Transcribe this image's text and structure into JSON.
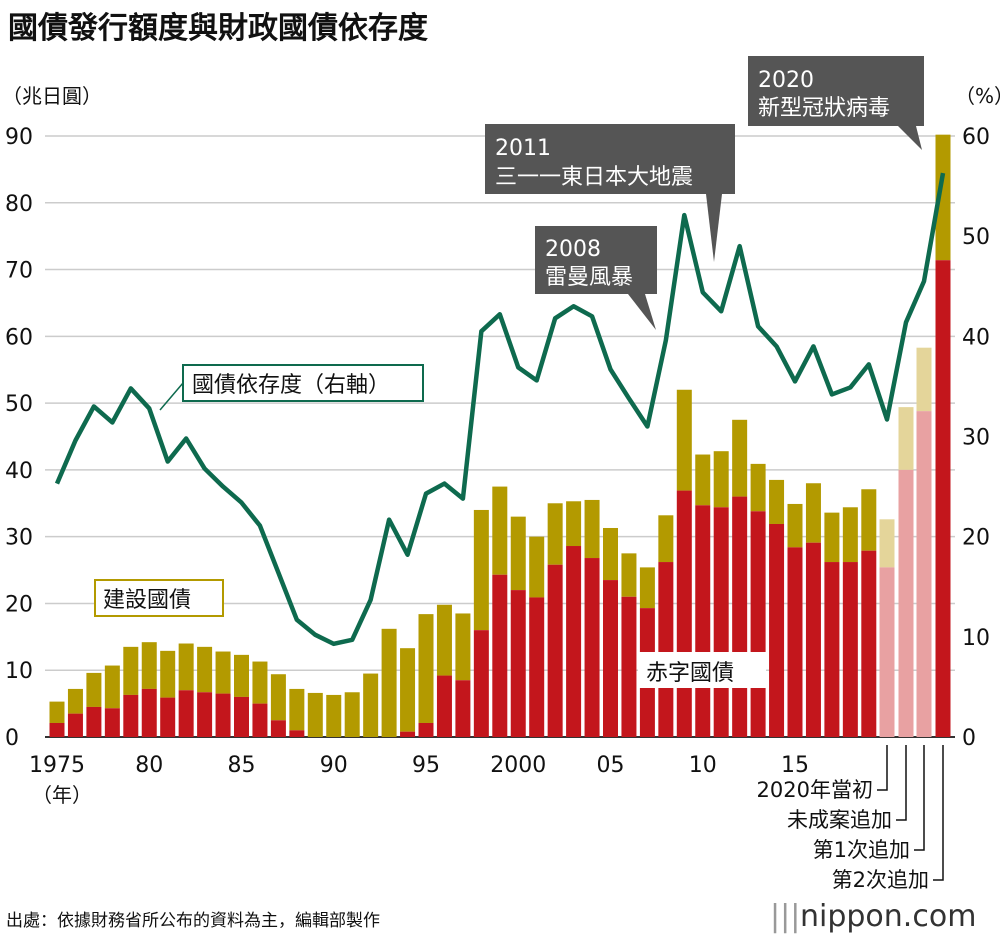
{
  "chart_data": {
    "type": "bar",
    "title": "國債發行額度與財政國債依存度",
    "ylabel": "（兆日圓）",
    "y2label": "（%）",
    "xlabel_unit": "（年）",
    "ylim": [
      0,
      90
    ],
    "y2lim": [
      0,
      60
    ],
    "yticks": [
      "0",
      "10",
      "20",
      "30",
      "40",
      "50",
      "60",
      "70",
      "80",
      "90"
    ],
    "y2ticks": [
      "0",
      "10",
      "20",
      "30",
      "40",
      "50",
      "60"
    ],
    "xtick_labels": [
      {
        "year": 1975,
        "label": "1975"
      },
      {
        "year": 1980,
        "label": "80"
      },
      {
        "year": 1985,
        "label": "85"
      },
      {
        "year": 1990,
        "label": "90"
      },
      {
        "year": 1995,
        "label": "95"
      },
      {
        "year": 2000,
        "label": "2000"
      },
      {
        "year": 2005,
        "label": "05"
      },
      {
        "year": 2010,
        "label": "10"
      },
      {
        "year": 2015,
        "label": "15"
      }
    ],
    "years": [
      1975,
      1976,
      1977,
      1978,
      1979,
      1980,
      1981,
      1982,
      1983,
      1984,
      1985,
      1986,
      1987,
      1988,
      1989,
      1990,
      1991,
      1992,
      1993,
      1994,
      1995,
      1996,
      1997,
      1998,
      1999,
      2000,
      2001,
      2002,
      2003,
      2004,
      2005,
      2006,
      2007,
      2008,
      2009,
      2010,
      2011,
      2012,
      2013,
      2014,
      2015,
      2016,
      2017,
      2018,
      2019
    ],
    "extra_2020": [
      "2020年當初",
      "未成案追加",
      "第1次追加",
      "第2次追加"
    ],
    "series": [
      {
        "name": "赤字國債",
        "color": "#c3161c",
        "values": [
          2.1,
          3.5,
          4.5,
          4.3,
          6.3,
          7.2,
          5.9,
          7.0,
          6.7,
          6.5,
          6.0,
          5.0,
          2.5,
          1.0,
          0,
          0,
          0,
          0,
          0,
          0.8,
          2.1,
          9.2,
          8.5,
          16.0,
          24.3,
          22.0,
          20.9,
          25.8,
          28.6,
          26.8,
          23.5,
          21.0,
          19.3,
          26.2,
          36.9,
          34.7,
          34.4,
          36.0,
          33.8,
          31.9,
          28.4,
          29.1,
          26.2,
          26.2,
          27.9
        ],
        "values_2020": [
          25.4,
          40.0,
          48.8,
          71.4
        ]
      },
      {
        "name": "建設國債",
        "color": "#b39a00",
        "totals": [
          5.3,
          7.2,
          9.6,
          10.7,
          13.5,
          14.2,
          12.9,
          14.0,
          13.5,
          12.8,
          12.3,
          11.3,
          9.4,
          7.2,
          6.6,
          6.3,
          6.7,
          9.5,
          16.2,
          13.3,
          18.4,
          19.8,
          18.5,
          34.0,
          37.5,
          33.0,
          30.0,
          35.0,
          35.3,
          35.5,
          31.3,
          27.5,
          25.4,
          33.2,
          52.0,
          42.3,
          42.8,
          47.5,
          40.9,
          38.5,
          34.9,
          38.0,
          33.6,
          34.4,
          37.1
        ],
        "totals_2020": [
          32.6,
          49.4,
          58.3,
          90.2
        ]
      },
      {
        "name": "國債依存度（右軸）",
        "type": "line",
        "color": "#0e6a4e",
        "values": [
          25.3,
          29.6,
          33.0,
          31.4,
          34.8,
          32.8,
          27.5,
          29.8,
          26.8,
          25.0,
          23.4,
          21.1,
          16.4,
          11.7,
          10.2,
          9.3,
          9.7,
          13.7,
          21.7,
          18.2,
          24.3,
          25.3,
          23.8,
          40.5,
          42.2,
          36.9,
          35.6,
          41.8,
          43.0,
          42.0,
          36.7,
          33.8,
          31.0,
          39.6,
          52.1,
          44.4,
          42.5,
          49.0,
          41.0,
          39.0,
          35.5,
          39.0,
          34.2,
          34.9,
          37.2
        ],
        "values_2020": [
          31.7,
          41.4,
          45.5,
          56.3
        ]
      }
    ],
    "light_colors": {
      "red": "#e8a1a2",
      "gold": "#e4d59a"
    },
    "annotations": {
      "a2008": {
        "year": "2008",
        "text": "雷曼風暴"
      },
      "a2011": {
        "year": "2011",
        "text": "三一一東日本大地震"
      },
      "a2020": {
        "year": "2020",
        "text": "新型冠狀病毒"
      },
      "label_line": "國債依存度（右軸）",
      "label_construction": "建設國債",
      "label_deficit": "赤字國債"
    },
    "source": "出處：依據財務省所公布的資料為主，編輯部製作",
    "brand": "nippon.com"
  }
}
